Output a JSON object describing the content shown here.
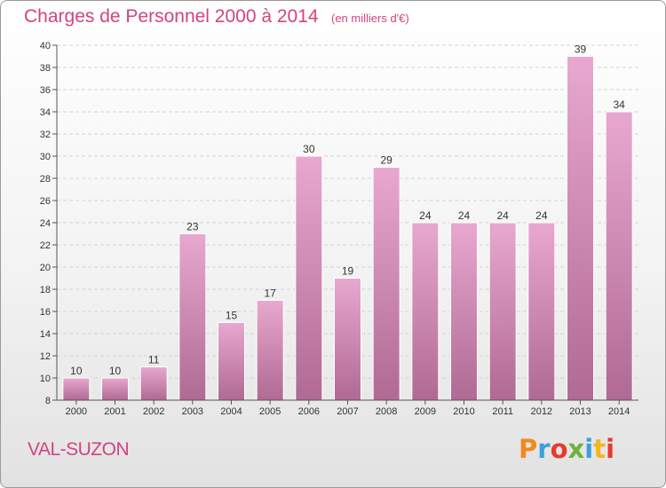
{
  "header": {
    "title": "Charges de Personnel 2000 à 2014",
    "subtitle": "(en milliers d'€)"
  },
  "footer": {
    "commune": "VAL-SUZON",
    "logo_text": "Proxiti",
    "logo_colors": [
      "#f08a1c",
      "#3aa0dc",
      "#e63b2e",
      "#6cb33e",
      "#3aa0dc",
      "#f2b51e",
      "#e63b2e"
    ]
  },
  "colors": {
    "bar_top": "#e8a8cf",
    "bar_bottom": "#b06a93",
    "accent": "#d2447f",
    "grid": "#d4d4d4",
    "axis": "#555555"
  },
  "chart_data": {
    "type": "bar",
    "title": "Charges de Personnel 2000 à 2014",
    "subtitle": "(en milliers d'€)",
    "categories": [
      "2000",
      "2001",
      "2002",
      "2003",
      "2004",
      "2005",
      "2006",
      "2007",
      "2008",
      "2009",
      "2010",
      "2011",
      "2012",
      "2013",
      "2014"
    ],
    "values": [
      10,
      10,
      11,
      23,
      15,
      17,
      30,
      19,
      29,
      24,
      24,
      24,
      24,
      39,
      34
    ],
    "xlabel": "",
    "ylabel": "",
    "ylim": [
      8,
      40
    ],
    "yticks": [
      8,
      10,
      12,
      14,
      16,
      18,
      20,
      22,
      24,
      26,
      28,
      30,
      32,
      34,
      36,
      38,
      40
    ],
    "grid": true,
    "legend": "none"
  }
}
